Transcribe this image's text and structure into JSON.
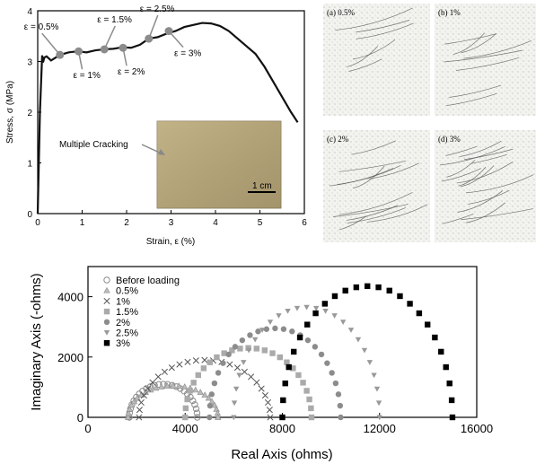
{
  "colors": {
    "axis": "#000000",
    "curve": "#111111",
    "marker": "#8c8c8c",
    "panel_bg": "#f4f4f0",
    "photo_bg": "#b8a77a"
  },
  "stress_strain": {
    "xlabel": "Strain, ε (%)",
    "ylabel": "Stress, σ (MPa)",
    "annotation": "Multiple Cracking",
    "scale_bar": "1 cm",
    "labels": [
      "ε = 0.5%",
      "ε = 1%",
      "ε = 1.5%",
      "ε = 2%",
      "ε = 2.5%",
      "ε = 3%"
    ]
  },
  "crack_panels": [
    {
      "label": "(a) 0.5%"
    },
    {
      "label": "(b) 1%"
    },
    {
      "label": "(c) 2%"
    },
    {
      "label": "(d) 3%"
    }
  ],
  "nyquist": {
    "xlabel": "Real Axis (ohms)",
    "ylabel": "Imaginary Axis (-ohms)",
    "legend": [
      "Before loading",
      "0.5%",
      "1%",
      "1.5%",
      "2%",
      "2.5%",
      "3%"
    ]
  },
  "chart_data": [
    {
      "type": "line",
      "xlabel": "Strain, ε (%)",
      "ylabel": "Stress, σ (MPa)",
      "xlim": [
        0,
        6
      ],
      "ylim": [
        0,
        4
      ],
      "x_ticks": [
        0,
        1,
        2,
        3,
        4,
        5,
        6
      ],
      "y_ticks": [
        0,
        1,
        2,
        3,
        4
      ],
      "series": [
        {
          "x": [
            0,
            0.05,
            0.1,
            0.12,
            0.15,
            0.2,
            0.3,
            0.5,
            0.7,
            0.9,
            1.1,
            1.3,
            1.5,
            1.7,
            1.9,
            2.1,
            2.3,
            2.5,
            2.7,
            2.9,
            3.1,
            3.3,
            3.5,
            3.7,
            3.9,
            4.1,
            4.3,
            4.5,
            4.7,
            4.9,
            5.1,
            5.3,
            5.5,
            5.7,
            5.85
          ],
          "y": [
            0,
            2.0,
            3.12,
            2.98,
            3.08,
            3.1,
            3.02,
            3.13,
            3.18,
            3.2,
            3.18,
            3.22,
            3.24,
            3.25,
            3.28,
            3.27,
            3.33,
            3.45,
            3.48,
            3.55,
            3.6,
            3.68,
            3.72,
            3.76,
            3.75,
            3.7,
            3.6,
            3.45,
            3.3,
            3.15,
            2.9,
            2.6,
            2.3,
            2.0,
            1.8
          ]
        }
      ],
      "markers": [
        {
          "label": "ε = 0.5%",
          "x": 0.5,
          "y": 3.13
        },
        {
          "label": "ε = 1%",
          "x": 0.92,
          "y": 3.2
        },
        {
          "label": "ε = 1.5%",
          "x": 1.5,
          "y": 3.24
        },
        {
          "label": "ε = 2%",
          "x": 1.92,
          "y": 3.27
        },
        {
          "label": "ε = 2.5%",
          "x": 2.5,
          "y": 3.45
        },
        {
          "label": "ε = 3%",
          "x": 2.95,
          "y": 3.6
        }
      ]
    },
    {
      "type": "scatter",
      "xlabel": "Real Axis (ohms)",
      "ylabel": "Imaginary Axis (-ohms)",
      "xlim": [
        0,
        16000
      ],
      "ylim": [
        0,
        5000
      ],
      "x_ticks": [
        0,
        4000,
        8000,
        12000,
        16000
      ],
      "y_ticks": [
        0,
        2000,
        4000
      ],
      "legend_position": "top-left",
      "series": [
        {
          "name": "Before loading",
          "marker": "circle-open",
          "center": 3100,
          "radius": 1400,
          "height": 1100
        },
        {
          "name": "0.5%",
          "marker": "triangle",
          "center": 3500,
          "radius": 1850,
          "height": 1050
        },
        {
          "name": "1%",
          "marker": "x",
          "center": 4800,
          "radius": 2700,
          "height": 1900
        },
        {
          "name": "1.5%",
          "marker": "square",
          "center": 6600,
          "radius": 2600,
          "height": 2300
        },
        {
          "name": "2%",
          "marker": "circle",
          "center": 7700,
          "radius": 2700,
          "height": 2950
        },
        {
          "name": "2.5%",
          "marker": "triangle-down",
          "center": 9000,
          "radius": 3000,
          "height": 3650
        },
        {
          "name": "3%",
          "marker": "square-filled",
          "center": 11500,
          "radius": 3500,
          "height": 4350
        }
      ]
    }
  ]
}
